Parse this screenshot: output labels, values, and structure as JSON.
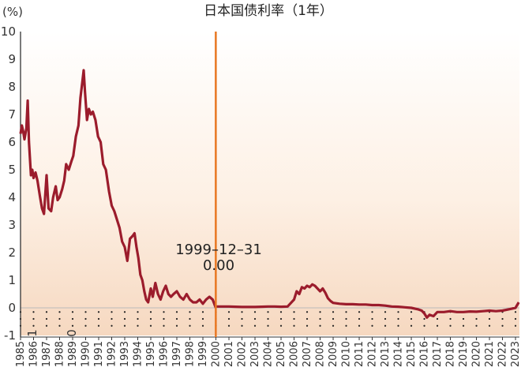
{
  "chart_data": {
    "type": "line",
    "title": "日本国债利率（1年）",
    "ylabel": "(%)",
    "xlabel": "",
    "ylim": [
      -1,
      10
    ],
    "yticks": [
      -1,
      0,
      1,
      2,
      3,
      4,
      5,
      6,
      7,
      8,
      9,
      10
    ],
    "xlim": [
      1985,
      2023.3
    ],
    "xticks": [
      "1985",
      "1986",
      "1987",
      "1988",
      "1989",
      "1990",
      "1991",
      "1992",
      "1993",
      "1994",
      "1995",
      "1996",
      "1997",
      "1998",
      "1999",
      "2000",
      "2001",
      "2002",
      "2003",
      "2004",
      "2005",
      "2006",
      "2007",
      "2008",
      "2009",
      "2010",
      "2011",
      "2012",
      "2013",
      "2014",
      "2015",
      "2016",
      "2017",
      "2018",
      "2019",
      "2020",
      "2021",
      "2022",
      "2023"
    ],
    "grid": "dotted-below-zero",
    "legend": "none",
    "colors": {
      "line": "#9b1c2c",
      "vline": "#e87722",
      "grid_dots": "#222222"
    },
    "series": [
      {
        "x": [
          1985.0,
          1985.1,
          1985.2,
          1985.3,
          1985.45,
          1985.55,
          1985.65,
          1985.8,
          1985.9,
          1986.0,
          1986.15,
          1986.3,
          1986.5,
          1986.65,
          1986.8,
          1987.0,
          1987.15,
          1987.35,
          1987.5,
          1987.7,
          1987.85,
          1988.0,
          1988.2,
          1988.35,
          1988.5,
          1988.7,
          1988.9,
          1989.05,
          1989.25,
          1989.45,
          1989.6,
          1989.75,
          1989.85,
          1989.95,
          1990.1,
          1990.25,
          1990.4,
          1990.55,
          1990.75,
          1990.95,
          1991.15,
          1991.35,
          1991.55,
          1991.8,
          1992.0,
          1992.2,
          1992.4,
          1992.6,
          1992.8,
          1993.0,
          1993.2,
          1993.4,
          1993.6,
          1993.75,
          1993.9,
          1994.05,
          1994.2,
          1994.35,
          1994.5,
          1994.65,
          1994.8,
          1995.0,
          1995.15,
          1995.35,
          1995.55,
          1995.75,
          1995.95,
          1996.15,
          1996.35,
          1996.55,
          1996.75,
          1997.0,
          1997.25,
          1997.5,
          1997.75,
          1998.0,
          1998.25,
          1998.5,
          1998.75,
          1999.0,
          1999.25,
          1999.5,
          1999.75,
          1999.99
        ],
        "y": [
          6.3,
          6.6,
          6.4,
          6.1,
          6.5,
          7.5,
          6.0,
          4.8,
          5.0,
          4.7,
          4.9,
          4.6,
          4.0,
          3.6,
          3.4,
          4.8,
          3.6,
          3.5,
          4.0,
          4.4,
          3.9,
          4.0,
          4.3,
          4.6,
          5.2,
          5.0,
          5.3,
          5.5,
          6.2,
          6.6,
          7.6,
          8.2,
          8.6,
          7.8,
          6.8,
          7.2,
          7.0,
          7.1,
          6.8,
          6.2,
          6.0,
          5.2,
          5.0,
          4.2,
          3.7,
          3.5,
          3.2,
          2.9,
          2.4,
          2.2,
          1.7,
          2.5,
          2.6,
          2.7,
          2.2,
          1.8,
          1.2,
          1.0,
          0.6,
          0.3,
          0.2,
          0.7,
          0.4,
          0.9,
          0.5,
          0.3,
          0.6,
          0.8,
          0.5,
          0.4,
          0.5,
          0.6,
          0.4,
          0.3,
          0.5,
          0.3,
          0.2,
          0.2,
          0.3,
          0.15,
          0.3,
          0.4,
          0.3,
          0.0
        ]
      },
      {
        "x": [
          2000.0,
          2000.5,
          2001.0,
          2001.5,
          2002.0,
          2002.5,
          2003.0,
          2003.5,
          2004.0,
          2004.5,
          2005.0,
          2005.5,
          2006.0,
          2006.2,
          2006.4,
          2006.6,
          2006.8,
          2007.0,
          2007.2,
          2007.4,
          2007.6,
          2007.8,
          2008.0,
          2008.2,
          2008.4,
          2008.6,
          2008.8,
          2009.0,
          2009.5,
          2010.0,
          2010.5,
          2011.0,
          2011.5,
          2012.0,
          2012.5,
          2013.0,
          2013.5,
          2014.0,
          2014.5,
          2015.0,
          2015.5,
          2015.8,
          2016.0,
          2016.2,
          2016.4,
          2016.7,
          2017.0,
          2017.5,
          2018.0,
          2018.5,
          2019.0,
          2019.5,
          2020.0,
          2020.5,
          2021.0,
          2021.5,
          2022.0,
          2022.5,
          2023.0,
          2023.25
        ],
        "y": [
          0.05,
          0.05,
          0.05,
          0.04,
          0.03,
          0.03,
          0.03,
          0.04,
          0.05,
          0.05,
          0.04,
          0.05,
          0.3,
          0.6,
          0.5,
          0.75,
          0.7,
          0.8,
          0.75,
          0.85,
          0.8,
          0.7,
          0.6,
          0.7,
          0.55,
          0.35,
          0.25,
          0.18,
          0.15,
          0.13,
          0.13,
          0.12,
          0.12,
          0.1,
          0.1,
          0.08,
          0.05,
          0.04,
          0.02,
          0.0,
          -0.05,
          -0.1,
          -0.2,
          -0.35,
          -0.25,
          -0.3,
          -0.15,
          -0.15,
          -0.12,
          -0.15,
          -0.15,
          -0.13,
          -0.14,
          -0.12,
          -0.1,
          -0.12,
          -0.1,
          -0.05,
          0.0,
          0.2
        ]
      }
    ],
    "annotations": [
      {
        "x": 1999.99,
        "label_date": "1999–12–31",
        "label_value": "0.00"
      }
    ],
    "bottom_labels": [
      "1",
      "0"
    ]
  }
}
